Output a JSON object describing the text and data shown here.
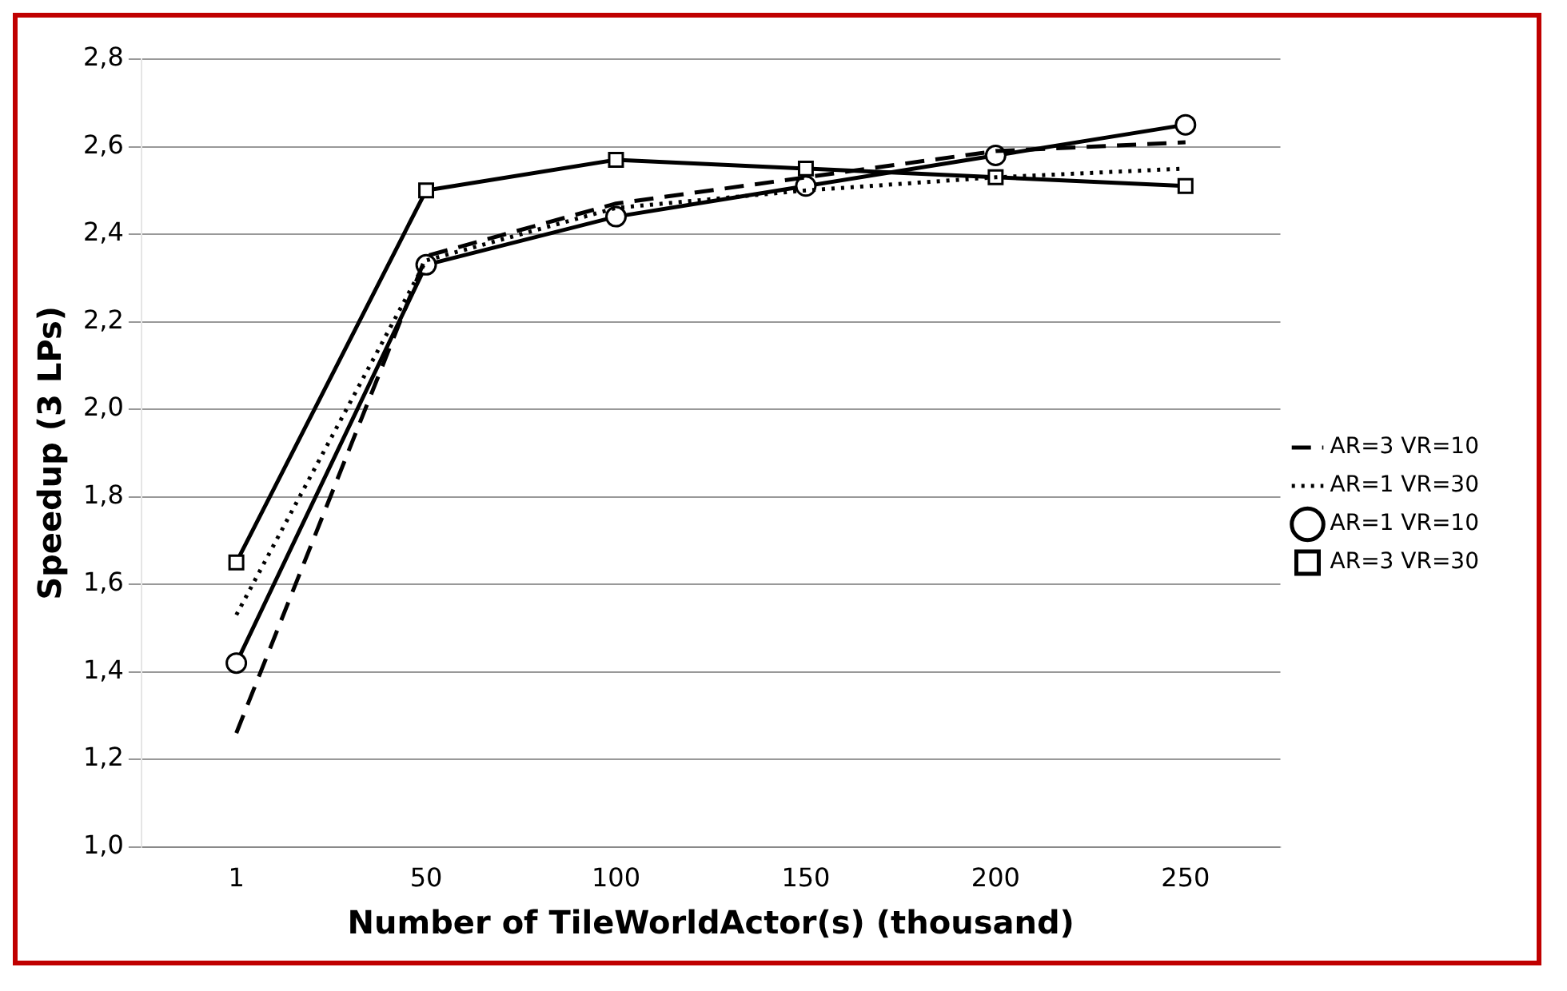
{
  "chart_data": {
    "type": "line",
    "xlabel": "Number of TileWorldActor(s) (thousand)",
    "ylabel": "Speedup (3 LPs)",
    "categories": [
      "1",
      "50",
      "100",
      "150",
      "200",
      "250"
    ],
    "series": [
      {
        "name": "AR=3 VR=10",
        "color": "#000000",
        "line_style": "dashed",
        "marker": "none",
        "values": [
          1.26,
          2.35,
          2.47,
          2.53,
          2.59,
          2.61
        ]
      },
      {
        "name": "AR=1 VR=30",
        "color": "#000000",
        "line_style": "dotted",
        "marker": "none",
        "values": [
          1.53,
          2.34,
          2.46,
          2.5,
          2.53,
          2.55
        ]
      },
      {
        "name": "AR=1 VR=10",
        "color": "#000000",
        "line_style": "solid",
        "marker": "circle",
        "values": [
          1.42,
          2.33,
          2.44,
          2.51,
          2.58,
          2.65
        ]
      },
      {
        "name": "AR=3 VR=30",
        "color": "#000000",
        "line_style": "solid",
        "marker": "square",
        "values": [
          1.65,
          2.5,
          2.57,
          2.55,
          2.53,
          2.51
        ]
      }
    ],
    "ylim": [
      1.0,
      2.8
    ],
    "yticks": [
      {
        "value": 1.0,
        "label": "1,0"
      },
      {
        "value": 1.2,
        "label": "1,2"
      },
      {
        "value": 1.4,
        "label": "1,4"
      },
      {
        "value": 1.6,
        "label": "1,6"
      },
      {
        "value": 1.8,
        "label": "1,8"
      },
      {
        "value": 2.0,
        "label": "2,0"
      },
      {
        "value": 2.2,
        "label": "2,2"
      },
      {
        "value": 2.4,
        "label": "2,4"
      },
      {
        "value": 2.6,
        "label": "2,6"
      },
      {
        "value": 2.8,
        "label": "2,8"
      }
    ],
    "grid": "y",
    "legend": "right"
  }
}
